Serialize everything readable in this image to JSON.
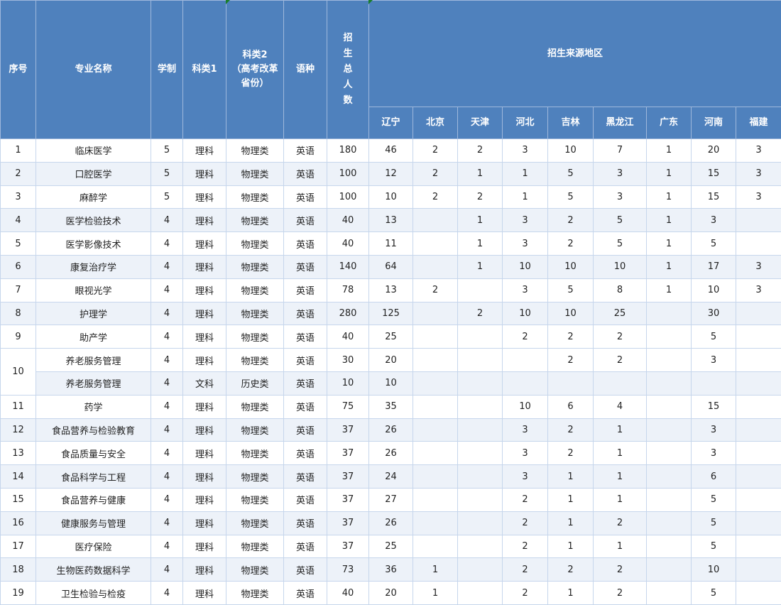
{
  "colors": {
    "header_bg": "#4f81bd",
    "alt_row": "#edf2f9",
    "border": "#c6d6ec"
  },
  "headers": {
    "index": "序号",
    "major": "专业名称",
    "duration": "学制",
    "category1": "科类1",
    "category2_line1": "科类2",
    "category2_line2": "（高考改革省份）",
    "language": "语种",
    "total": "招生总人数",
    "regions_group": "招生来源地区",
    "regions": [
      "辽宁",
      "北京",
      "天津",
      "河北",
      "吉林",
      "黑龙江",
      "广东",
      "河南",
      "福建"
    ]
  },
  "rows": [
    {
      "index": "1",
      "major": "临床医学",
      "duration": "5",
      "cat1": "理科",
      "cat2": "物理类",
      "lang": "英语",
      "total": "180",
      "regions": [
        "46",
        "2",
        "2",
        "3",
        "10",
        "7",
        "1",
        "20",
        "3"
      ]
    },
    {
      "index": "2",
      "major": "口腔医学",
      "duration": "5",
      "cat1": "理科",
      "cat2": "物理类",
      "lang": "英语",
      "total": "100",
      "regions": [
        "12",
        "2",
        "1",
        "1",
        "5",
        "3",
        "1",
        "15",
        "3"
      ]
    },
    {
      "index": "3",
      "major": "麻醉学",
      "duration": "5",
      "cat1": "理科",
      "cat2": "物理类",
      "lang": "英语",
      "total": "100",
      "regions": [
        "10",
        "2",
        "2",
        "1",
        "5",
        "3",
        "1",
        "15",
        "3"
      ]
    },
    {
      "index": "4",
      "major": "医学检验技术",
      "duration": "4",
      "cat1": "理科",
      "cat2": "物理类",
      "lang": "英语",
      "total": "40",
      "regions": [
        "13",
        "",
        "1",
        "3",
        "2",
        "5",
        "1",
        "3",
        ""
      ]
    },
    {
      "index": "5",
      "major": "医学影像技术",
      "duration": "4",
      "cat1": "理科",
      "cat2": "物理类",
      "lang": "英语",
      "total": "40",
      "regions": [
        "11",
        "",
        "1",
        "3",
        "2",
        "5",
        "1",
        "5",
        ""
      ]
    },
    {
      "index": "6",
      "major": "康复治疗学",
      "duration": "4",
      "cat1": "理科",
      "cat2": "物理类",
      "lang": "英语",
      "total": "140",
      "regions": [
        "64",
        "",
        "1",
        "10",
        "10",
        "10",
        "1",
        "17",
        "3"
      ]
    },
    {
      "index": "7",
      "major": "眼视光学",
      "duration": "4",
      "cat1": "理科",
      "cat2": "物理类",
      "lang": "英语",
      "total": "78",
      "regions": [
        "13",
        "2",
        "",
        "3",
        "5",
        "8",
        "1",
        "10",
        "3"
      ]
    },
    {
      "index": "8",
      "major": "护理学",
      "duration": "4",
      "cat1": "理科",
      "cat2": "物理类",
      "lang": "英语",
      "total": "280",
      "regions": [
        "125",
        "",
        "2",
        "10",
        "10",
        "25",
        "",
        "30",
        ""
      ]
    },
    {
      "index": "9",
      "major": "助产学",
      "duration": "4",
      "cat1": "理科",
      "cat2": "物理类",
      "lang": "英语",
      "total": "40",
      "regions": [
        "25",
        "",
        "",
        "2",
        "2",
        "2",
        "",
        "5",
        ""
      ]
    },
    {
      "index": "10",
      "major": "养老服务管理",
      "duration": "4",
      "cat1": "理科",
      "cat2": "物理类",
      "lang": "英语",
      "total": "30",
      "regions": [
        "20",
        "",
        "",
        "",
        "2",
        "2",
        "",
        "3",
        ""
      ]
    },
    {
      "index": "",
      "major": "养老服务管理",
      "duration": "4",
      "cat1": "文科",
      "cat2": "历史类",
      "lang": "英语",
      "total": "10",
      "regions": [
        "10",
        "",
        "",
        "",
        "",
        "",
        "",
        "",
        ""
      ]
    },
    {
      "index": "11",
      "major": "药学",
      "duration": "4",
      "cat1": "理科",
      "cat2": "物理类",
      "lang": "英语",
      "total": "75",
      "regions": [
        "35",
        "",
        "",
        "10",
        "6",
        "4",
        "",
        "15",
        ""
      ]
    },
    {
      "index": "12",
      "major": "食品营养与检验教育",
      "duration": "4",
      "cat1": "理科",
      "cat2": "物理类",
      "lang": "英语",
      "total": "37",
      "regions": [
        "26",
        "",
        "",
        "3",
        "2",
        "1",
        "",
        "3",
        ""
      ]
    },
    {
      "index": "13",
      "major": "食品质量与安全",
      "duration": "4",
      "cat1": "理科",
      "cat2": "物理类",
      "lang": "英语",
      "total": "37",
      "regions": [
        "26",
        "",
        "",
        "3",
        "2",
        "1",
        "",
        "3",
        ""
      ]
    },
    {
      "index": "14",
      "major": "食品科学与工程",
      "duration": "4",
      "cat1": "理科",
      "cat2": "物理类",
      "lang": "英语",
      "total": "37",
      "regions": [
        "24",
        "",
        "",
        "3",
        "1",
        "1",
        "",
        "6",
        ""
      ]
    },
    {
      "index": "15",
      "major": "食品营养与健康",
      "duration": "4",
      "cat1": "理科",
      "cat2": "物理类",
      "lang": "英语",
      "total": "37",
      "regions": [
        "27",
        "",
        "",
        "2",
        "1",
        "1",
        "",
        "5",
        ""
      ]
    },
    {
      "index": "16",
      "major": "健康服务与管理",
      "duration": "4",
      "cat1": "理科",
      "cat2": "物理类",
      "lang": "英语",
      "total": "37",
      "regions": [
        "26",
        "",
        "",
        "2",
        "1",
        "2",
        "",
        "5",
        ""
      ]
    },
    {
      "index": "17",
      "major": "医疗保险",
      "duration": "4",
      "cat1": "理科",
      "cat2": "物理类",
      "lang": "英语",
      "total": "37",
      "regions": [
        "25",
        "",
        "",
        "2",
        "1",
        "1",
        "",
        "5",
        ""
      ]
    },
    {
      "index": "18",
      "major": "生物医药数据科学",
      "duration": "4",
      "cat1": "理科",
      "cat2": "物理类",
      "lang": "英语",
      "total": "73",
      "regions": [
        "36",
        "1",
        "",
        "2",
        "2",
        "2",
        "",
        "10",
        ""
      ]
    },
    {
      "index": "19",
      "major": "卫生检验与检疫",
      "duration": "4",
      "cat1": "理科",
      "cat2": "物理类",
      "lang": "英语",
      "total": "40",
      "regions": [
        "20",
        "1",
        "",
        "2",
        "1",
        "2",
        "",
        "5",
        ""
      ]
    }
  ]
}
